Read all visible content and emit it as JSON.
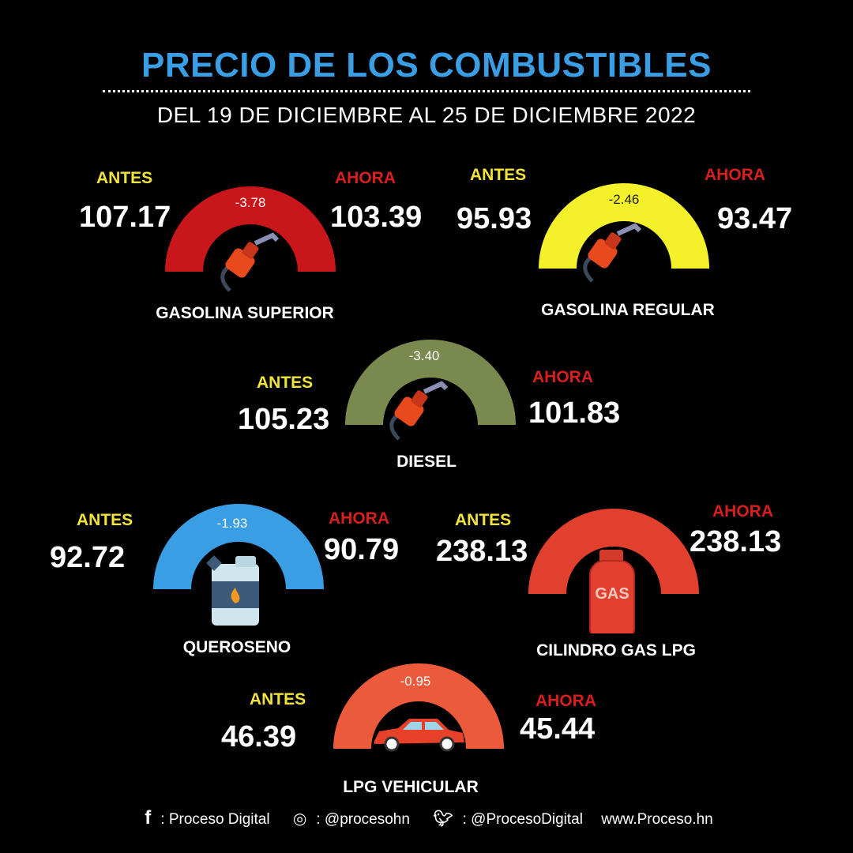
{
  "header": {
    "title": "PRECIO DE LOS COMBUSTIBLES",
    "subtitle": "DEL 19 DE DICIEMBRE AL 25 DE DICIEMBRE 2022"
  },
  "labels": {
    "antes": "ANTES",
    "ahora": "AHORA"
  },
  "fuels": {
    "superior": {
      "name": "GASOLINA SUPERIOR",
      "antes": "107.17",
      "ahora": "103.39",
      "delta": "-3.78",
      "color": "#c8161a"
    },
    "regular": {
      "name": "GASOLINA REGULAR",
      "antes": "95.93",
      "ahora": "93.47",
      "delta": "-2.46",
      "color": "#f4f12a"
    },
    "diesel": {
      "name": "DIESEL",
      "antes": "105.23",
      "ahora": "101.83",
      "delta": "-3.40",
      "color": "#7a8a4e"
    },
    "queroseno": {
      "name": "QUEROSENO",
      "antes": "92.72",
      "ahora": "90.79",
      "delta": "-1.93",
      "color": "#3a9ee4"
    },
    "cilindro": {
      "name": "CILINDRO GAS LPG",
      "antes": "238.13",
      "ahora": "238.13",
      "color": "#e2402e"
    },
    "lpg": {
      "name": "LPG VEHICULAR",
      "antes": "46.39",
      "ahora": "45.44",
      "delta": "-0.95",
      "color": "#ec5a3c"
    }
  },
  "footer": {
    "facebook": ": Proceso Digital",
    "instagram": ": @procesohn",
    "twitter": ": @ProcesoDigital",
    "web": "www.Proceso.hn"
  },
  "icons": [
    "fuel-nozzle-icon",
    "kerosene-jerrycan-icon",
    "gas-cylinder-icon",
    "car-icon",
    "facebook-icon",
    "instagram-icon",
    "twitter-icon"
  ]
}
